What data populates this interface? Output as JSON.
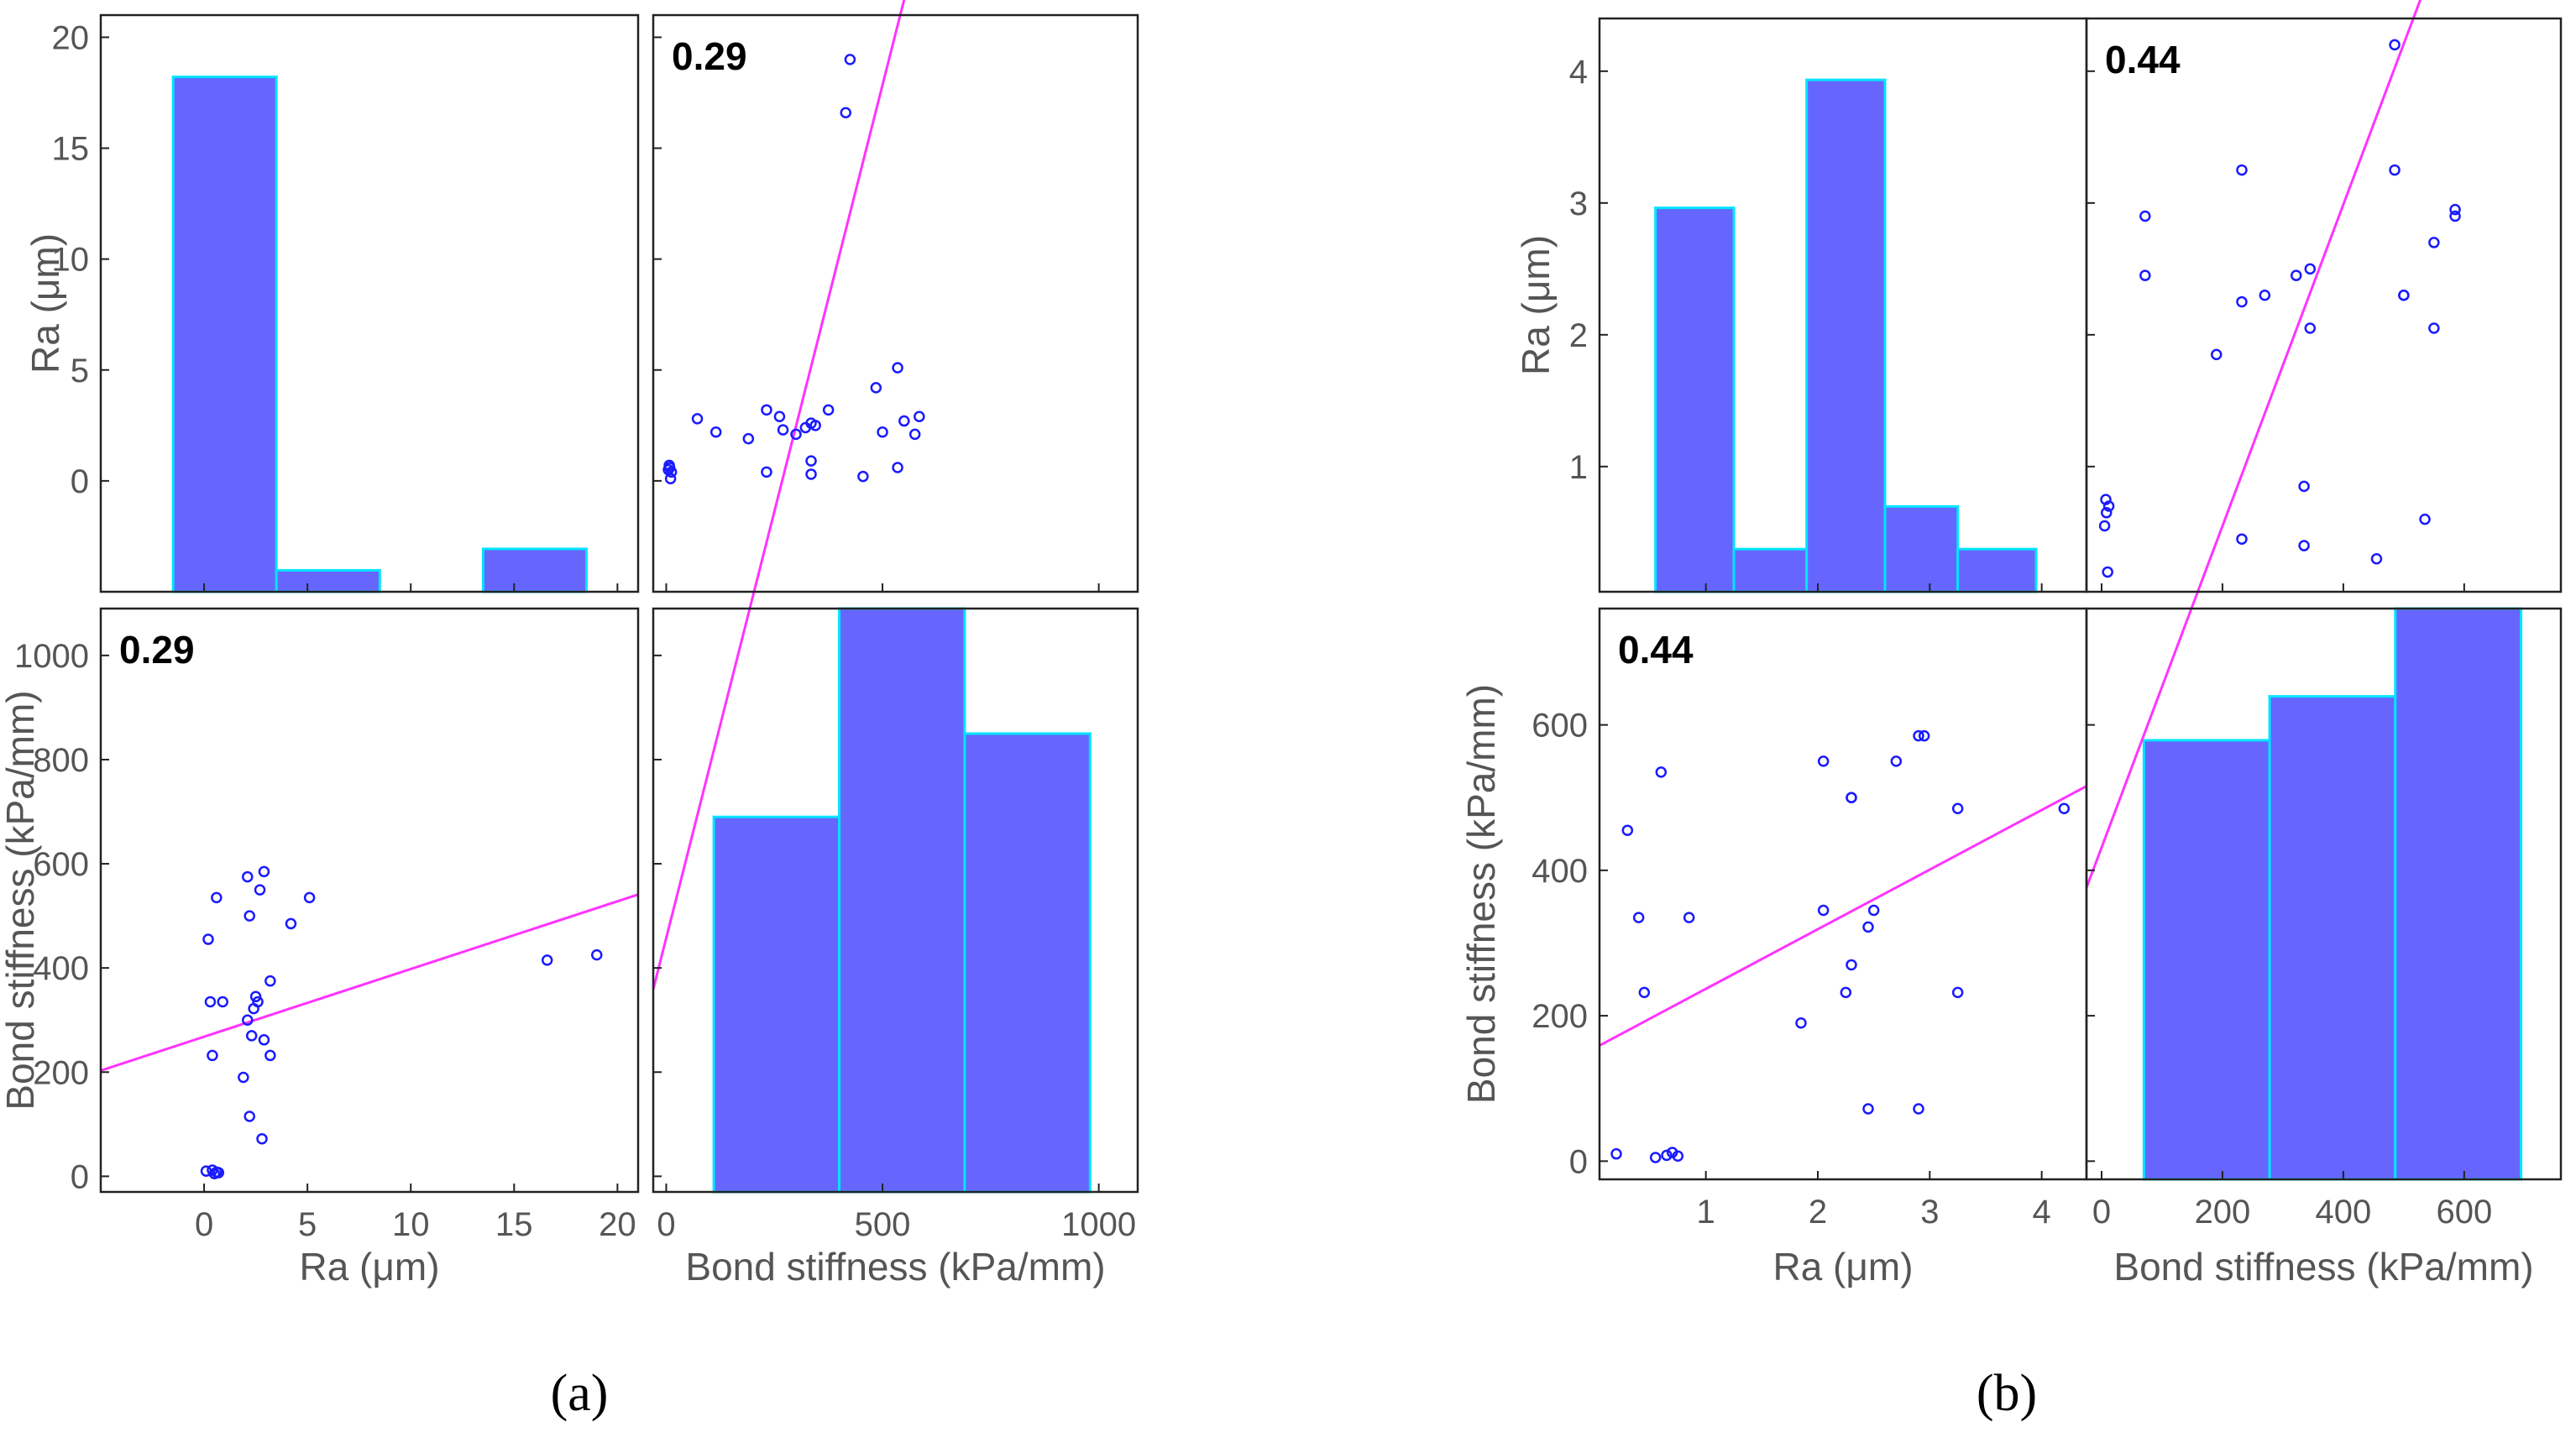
{
  "colors": {
    "bar_fill": "#6666ff",
    "bar_edge": "#00e5ff",
    "point": "#1a1aff",
    "fit_line": "#ff33ff",
    "axis": "#222222"
  },
  "chart_data": [
    {
      "panel": "a",
      "caption": "(a)",
      "type": "scatter_matrix",
      "variables": [
        "Ra",
        "Bond stiffness"
      ],
      "correlation_label": "0.29",
      "axis_labels": {
        "x_ra": "Ra (μm)",
        "x_bond": "Bond stiffness (kPa/mm)",
        "y_ra": "Ra (μm)",
        "y_bond": "Bond stiffness (kPa/mm)"
      },
      "ranges": {
        "ra": [
          -5,
          21
        ],
        "bond": [
          -30,
          1090
        ]
      },
      "ra_axis_ticks": [
        -5,
        0,
        5,
        10,
        15,
        20
      ],
      "ra_axis_tick_labels": [
        "",
        "0",
        "5",
        "10",
        "15",
        "20"
      ],
      "bond_axis_ticks": [
        0,
        200,
        400,
        600,
        800,
        1000
      ],
      "bond_axis_tick_labels": [
        "0",
        "200",
        "400",
        "600",
        "800",
        "1000"
      ],
      "bond_x_ticks": [
        0,
        500,
        1000
      ],
      "bond_x_tick_labels": [
        "0",
        "500",
        "1000"
      ],
      "hist_ra": {
        "edges": [
          -1.5,
          3.5,
          8.5,
          13.5,
          18.5
        ],
        "counts": [
          24,
          1,
          0,
          2
        ]
      },
      "hist_bond": {
        "edges": [
          110,
          400,
          690,
          980
        ],
        "counts": [
          9,
          14,
          11
        ]
      },
      "points": [
        {
          "ra": 0.1,
          "bond": 10
        },
        {
          "ra": 0.5,
          "bond": 5
        },
        {
          "ra": 0.6,
          "bond": 8
        },
        {
          "ra": 0.7,
          "bond": 7
        },
        {
          "ra": 0.4,
          "bond": 12
        },
        {
          "ra": 0.2,
          "bond": 455
        },
        {
          "ra": 0.6,
          "bond": 535
        },
        {
          "ra": 0.3,
          "bond": 335
        },
        {
          "ra": 0.9,
          "bond": 335
        },
        {
          "ra": 0.4,
          "bond": 232
        },
        {
          "ra": 1.9,
          "bond": 190
        },
        {
          "ra": 2.2,
          "bond": 115
        },
        {
          "ra": 2.8,
          "bond": 72
        },
        {
          "ra": 2.3,
          "bond": 270
        },
        {
          "ra": 2.9,
          "bond": 262
        },
        {
          "ra": 3.2,
          "bond": 232
        },
        {
          "ra": 2.1,
          "bond": 300
        },
        {
          "ra": 2.4,
          "bond": 322
        },
        {
          "ra": 2.5,
          "bond": 345
        },
        {
          "ra": 2.6,
          "bond": 335
        },
        {
          "ra": 3.2,
          "bond": 375
        },
        {
          "ra": 4.2,
          "bond": 485
        },
        {
          "ra": 5.1,
          "bond": 535
        },
        {
          "ra": 2.2,
          "bond": 500
        },
        {
          "ra": 2.1,
          "bond": 575
        },
        {
          "ra": 2.9,
          "bond": 585
        },
        {
          "ra": 2.7,
          "bond": 550
        },
        {
          "ra": 16.6,
          "bond": 415
        },
        {
          "ra": 19.0,
          "bond": 425
        }
      ],
      "fit": {
        "slope": 13.0,
        "intercept": 268
      }
    },
    {
      "panel": "b",
      "caption": "(b)",
      "type": "scatter_matrix",
      "variables": [
        "Ra",
        "Bond stiffness"
      ],
      "correlation_label": "0.44",
      "axis_labels": {
        "x_ra": "Ra (μm)",
        "x_bond": "Bond stiffness (kPa/mm)",
        "y_ra": "Ra (μm)",
        "y_bond": "Bond stiffness (kPa/mm)"
      },
      "ranges": {
        "ra": [
          0.05,
          4.4
        ],
        "bond": [
          -25,
          760
        ]
      },
      "ra_axis_ticks": [
        1,
        2,
        3,
        4
      ],
      "ra_axis_tick_labels": [
        "1",
        "2",
        "3",
        "4"
      ],
      "bond_axis_ticks": [
        0,
        200,
        400,
        600
      ],
      "bond_axis_tick_labels": [
        "0",
        "200",
        "400",
        "600"
      ],
      "bond_x_ticks": [
        0,
        200,
        400,
        600
      ],
      "bond_x_tick_labels": [
        "0",
        "200",
        "400",
        "600"
      ],
      "hist_ra": {
        "edges": [
          0.55,
          1.25,
          1.9,
          2.6,
          3.25,
          3.95
        ],
        "counts": [
          9,
          1,
          12,
          2,
          1
        ]
      },
      "hist_bond": {
        "edges": [
          70,
          278,
          486,
          694
        ],
        "counts": [
          10,
          11,
          13
        ]
      },
      "points": [
        {
          "ra": 0.2,
          "bond": 10
        },
        {
          "ra": 0.55,
          "bond": 5
        },
        {
          "ra": 0.65,
          "bond": 8
        },
        {
          "ra": 0.75,
          "bond": 7
        },
        {
          "ra": 0.7,
          "bond": 12
        },
        {
          "ra": 0.3,
          "bond": 455
        },
        {
          "ra": 0.6,
          "bond": 535
        },
        {
          "ra": 0.4,
          "bond": 335
        },
        {
          "ra": 0.85,
          "bond": 335
        },
        {
          "ra": 0.45,
          "bond": 232
        },
        {
          "ra": 1.85,
          "bond": 190
        },
        {
          "ra": 2.45,
          "bond": 72
        },
        {
          "ra": 2.9,
          "bond": 72
        },
        {
          "ra": 2.3,
          "bond": 270
        },
        {
          "ra": 2.25,
          "bond": 232
        },
        {
          "ra": 3.25,
          "bond": 232
        },
        {
          "ra": 2.45,
          "bond": 322
        },
        {
          "ra": 2.05,
          "bond": 345
        },
        {
          "ra": 2.5,
          "bond": 345
        },
        {
          "ra": 2.05,
          "bond": 550
        },
        {
          "ra": 2.3,
          "bond": 500
        },
        {
          "ra": 2.3,
          "bond": 500
        },
        {
          "ra": 2.7,
          "bond": 550
        },
        {
          "ra": 2.9,
          "bond": 585
        },
        {
          "ra": 2.95,
          "bond": 585
        },
        {
          "ra": 3.25,
          "bond": 485
        },
        {
          "ra": 4.2,
          "bond": 485
        }
      ],
      "fit": {
        "slope": 82.0,
        "intercept": 155
      }
    }
  ]
}
